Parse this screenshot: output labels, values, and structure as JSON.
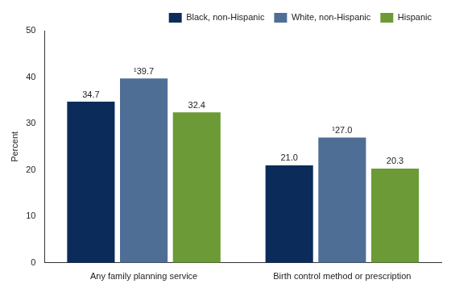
{
  "chart_data": {
    "type": "bar",
    "categories": [
      "Any family planning service",
      "Birth control method or prescription"
    ],
    "series": [
      {
        "name": "Black, non-Hispanic",
        "color": "#0b2c5b",
        "values": [
          34.7,
          21.0
        ],
        "value_labels": [
          "34.7",
          "21.0"
        ]
      },
      {
        "name": "White, non-Hispanic",
        "color": "#4f6e96",
        "values": [
          39.7,
          27.0
        ],
        "value_labels": [
          "¹39.7",
          "¹27.0"
        ]
      },
      {
        "name": "Hispanic",
        "color": "#6b9a36",
        "values": [
          32.4,
          20.3
        ],
        "value_labels": [
          "32.4",
          "20.3"
        ]
      }
    ],
    "y_label": "Percent",
    "ylim": [
      0,
      50
    ],
    "yticks": [
      0,
      10,
      20,
      30,
      40,
      50
    ],
    "grid": false,
    "legend": "top right",
    "data_labels": true
  }
}
